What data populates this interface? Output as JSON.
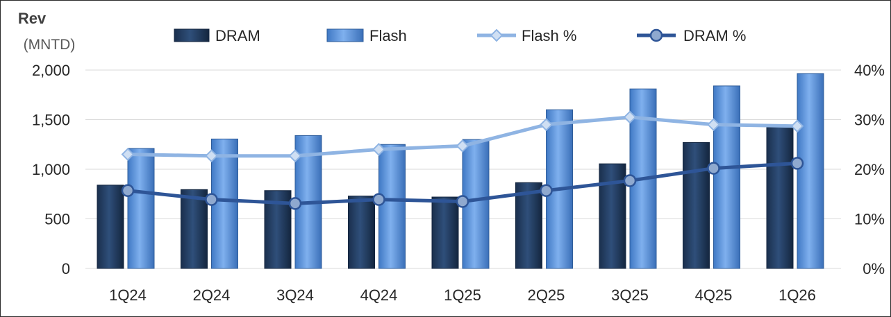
{
  "chart_data": {
    "type": "bar",
    "y_title": "Rev",
    "y_unit": "(MNTD)",
    "categories": [
      "1Q24",
      "2Q24",
      "3Q24",
      "4Q24",
      "1Q25",
      "2Q25",
      "3Q25",
      "4Q25",
      "1Q26"
    ],
    "ylim": [
      0,
      2000
    ],
    "yticks": [
      "0",
      "500",
      "1,000",
      "1,500",
      "2,000"
    ],
    "y2lim": [
      0,
      40
    ],
    "y2ticks": [
      "0%",
      "10%",
      "20%",
      "30%",
      "40%"
    ],
    "grid": true,
    "legend_position": "top",
    "series": [
      {
        "name": "DRAM",
        "type": "bar",
        "axis": "left",
        "color": "#1f3a5f",
        "values": [
          840,
          795,
          785,
          730,
          720,
          865,
          1055,
          1270,
          1425
        ]
      },
      {
        "name": "Flash",
        "type": "bar",
        "axis": "left",
        "color": "#4f8ad6",
        "values": [
          1210,
          1305,
          1340,
          1250,
          1300,
          1600,
          1810,
          1840,
          1965
        ]
      },
      {
        "name": "Flash %",
        "type": "line",
        "axis": "right",
        "color": "#8fb4e3",
        "values": [
          23,
          22.7,
          22.7,
          24,
          24.7,
          29,
          30.5,
          29,
          28.7
        ]
      },
      {
        "name": "DRAM %",
        "type": "line",
        "axis": "right",
        "color": "#2e5597",
        "values": [
          15.7,
          13.9,
          13.1,
          13.9,
          13.5,
          15.7,
          17.7,
          20.2,
          21.2
        ]
      }
    ]
  }
}
